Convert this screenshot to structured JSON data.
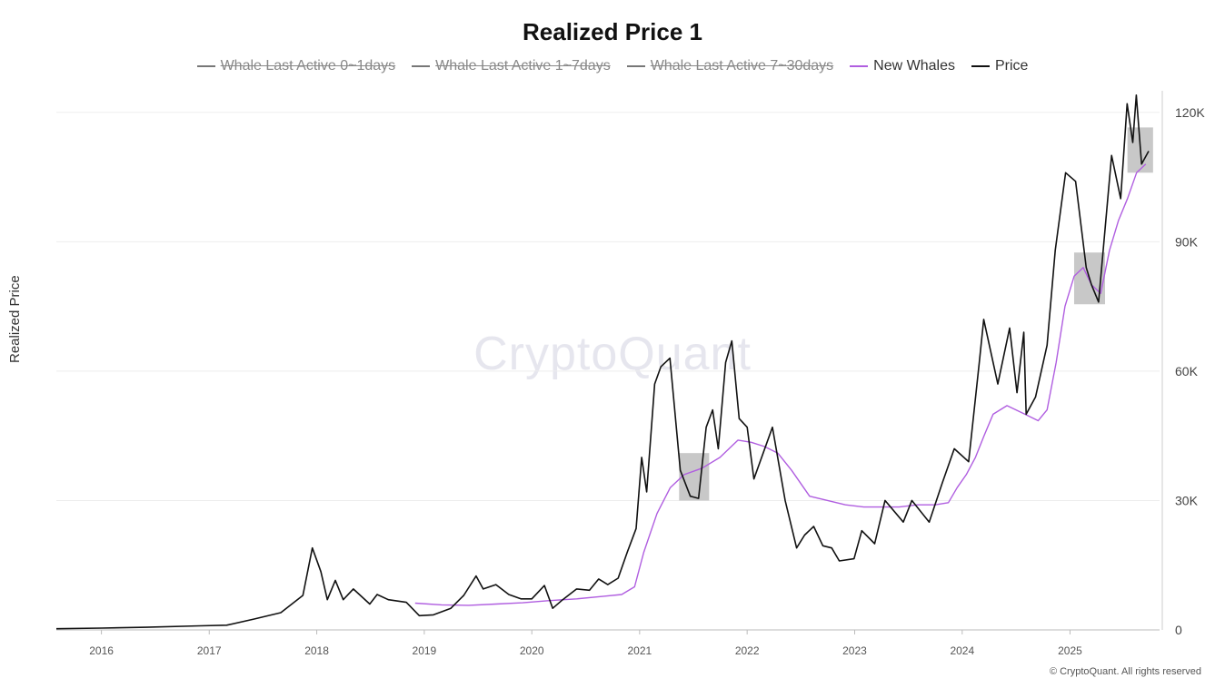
{
  "chart_data": {
    "type": "line",
    "title": "Realized Price 1",
    "ylabel": "Realized Price",
    "xlabel": "",
    "ylim": [
      0,
      125000
    ],
    "y_ticks": [
      0,
      30000,
      60000,
      90000,
      120000
    ],
    "y_tick_labels": [
      "0",
      "30K",
      "60K",
      "90K",
      "120K"
    ],
    "x_ticks": [
      "2016",
      "2017",
      "2018",
      "2019",
      "2020",
      "2021",
      "2022",
      "2023",
      "2024",
      "2025"
    ],
    "xlim": [
      "2015-08-01",
      "2025-11-01"
    ],
    "legend_position": "top-center",
    "grid": "horizontal",
    "series": [
      {
        "name": "Whale Last Active 0~1days",
        "color": "#777777",
        "visible": false,
        "x": [],
        "values": []
      },
      {
        "name": "Whale Last Active 1~7days",
        "color": "#777777",
        "visible": false,
        "x": [],
        "values": []
      },
      {
        "name": "Whale Last Active 7~30days",
        "color": "#777777",
        "visible": false,
        "x": [],
        "values": []
      },
      {
        "name": "New Whales",
        "color": "#b05ee0",
        "visible": true,
        "x": [
          "2018-12-01",
          "2019-03-01",
          "2019-06-01",
          "2019-09-01",
          "2019-12-01",
          "2020-03-01",
          "2020-06-01",
          "2020-09-01",
          "2020-11-01",
          "2020-12-15",
          "2021-01-15",
          "2021-03-01",
          "2021-04-15",
          "2021-06-01",
          "2021-08-01",
          "2021-10-01",
          "2021-12-01",
          "2022-01-15",
          "2022-03-01",
          "2022-04-15",
          "2022-06-01",
          "2022-08-01",
          "2022-10-01",
          "2022-12-01",
          "2023-02-01",
          "2023-04-01",
          "2023-06-01",
          "2023-08-01",
          "2023-10-01",
          "2023-11-15",
          "2023-12-15",
          "2024-01-15",
          "2024-02-15",
          "2024-03-15",
          "2024-04-15",
          "2024-06-01",
          "2024-08-01",
          "2024-09-15",
          "2024-10-15",
          "2024-11-15",
          "2024-12-15",
          "2025-01-15",
          "2025-02-15",
          "2025-03-15",
          "2025-04-15",
          "2025-05-15",
          "2025-06-15",
          "2025-07-15",
          "2025-08-15",
          "2025-09-15"
        ],
        "values": [
          6200,
          5800,
          5700,
          6000,
          6300,
          6800,
          7200,
          7800,
          8200,
          10000,
          18000,
          27000,
          33000,
          36000,
          37500,
          40000,
          44000,
          43500,
          42500,
          41000,
          37000,
          31000,
          30000,
          29000,
          28500,
          28500,
          28500,
          29000,
          29000,
          29500,
          33000,
          36000,
          40000,
          45000,
          50000,
          52000,
          50000,
          48500,
          51000,
          62000,
          75000,
          82000,
          84000,
          80000,
          78000,
          88000,
          95000,
          100000,
          106000,
          108000
        ]
      },
      {
        "name": "Price",
        "color": "#111111",
        "visible": true,
        "x": [
          "2015-08-01",
          "2016-01-01",
          "2016-06-01",
          "2016-12-01",
          "2017-03-01",
          "2017-06-01",
          "2017-09-01",
          "2017-11-15",
          "2017-12-17",
          "2018-01-15",
          "2018-02-06",
          "2018-03-05",
          "2018-04-01",
          "2018-05-05",
          "2018-06-30",
          "2018-07-25",
          "2018-09-01",
          "2018-11-01",
          "2018-12-15",
          "2019-02-01",
          "2019-04-01",
          "2019-05-15",
          "2019-06-26",
          "2019-07-20",
          "2019-09-01",
          "2019-10-15",
          "2019-11-25",
          "2020-01-01",
          "2020-02-13",
          "2020-03-12",
          "2020-04-15",
          "2020-06-01",
          "2020-07-15",
          "2020-08-15",
          "2020-09-15",
          "2020-10-20",
          "2020-11-20",
          "2020-12-20",
          "2021-01-08",
          "2021-01-25",
          "2021-02-21",
          "2021-03-14",
          "2021-04-14",
          "2021-05-19",
          "2021-06-22",
          "2021-07-20",
          "2021-08-15",
          "2021-09-06",
          "2021-09-25",
          "2021-10-20",
          "2021-11-10",
          "2021-12-05",
          "2022-01-01",
          "2022-01-24",
          "2022-03-28",
          "2022-05-10",
          "2022-06-18",
          "2022-07-15",
          "2022-08-15",
          "2022-09-15",
          "2022-10-15",
          "2022-11-10",
          "2022-12-30",
          "2023-01-25",
          "2023-03-10",
          "2023-04-14",
          "2023-06-15",
          "2023-07-14",
          "2023-09-11",
          "2023-10-25",
          "2023-12-05",
          "2024-01-23",
          "2024-02-28",
          "2024-03-14",
          "2024-05-01",
          "2024-06-10",
          "2024-07-05",
          "2024-07-28",
          "2024-08-05",
          "2024-09-06",
          "2024-10-15",
          "2024-11-12",
          "2024-12-17",
          "2025-01-20",
          "2025-02-25",
          "2025-03-15",
          "2025-04-08",
          "2025-05-22",
          "2025-06-22",
          "2025-07-14",
          "2025-08-02",
          "2025-08-14",
          "2025-09-01",
          "2025-09-25"
        ],
        "values": [
          270,
          430,
          600,
          950,
          1100,
          2500,
          4000,
          8000,
          19000,
          13500,
          7000,
          11500,
          7000,
          9500,
          6000,
          8200,
          7000,
          6400,
          3300,
          3500,
          5000,
          8000,
          12500,
          9500,
          10500,
          8200,
          7200,
          7200,
          10300,
          5000,
          7000,
          9500,
          9200,
          11800,
          10500,
          12000,
          18000,
          23500,
          40000,
          32000,
          57000,
          61000,
          63000,
          37000,
          31000,
          30500,
          47000,
          51000,
          42000,
          62000,
          67000,
          49000,
          47000,
          35000,
          47000,
          30000,
          19000,
          22000,
          24000,
          19500,
          19000,
          16000,
          16500,
          23000,
          20000,
          30000,
          25000,
          30000,
          25000,
          34000,
          42000,
          39000,
          62000,
          72000,
          57000,
          70000,
          55000,
          69000,
          50000,
          54000,
          66000,
          88000,
          106000,
          104000,
          84000,
          80000,
          76000,
          110000,
          100000,
          122000,
          113000,
          124000,
          108000,
          111000
        ]
      }
    ],
    "highlight_regions": [
      {
        "x": [
          "2021-05-15",
          "2021-08-25"
        ],
        "y": [
          30000,
          41000
        ]
      },
      {
        "x": [
          "2025-01-15",
          "2025-04-30"
        ],
        "y": [
          75500,
          87500
        ]
      },
      {
        "x": [
          "2025-07-15",
          "2025-10-10"
        ],
        "y": [
          106000,
          116500
        ]
      }
    ]
  },
  "watermark": "CryptoQuant",
  "copyright": "© CryptoQuant. All rights reserved"
}
